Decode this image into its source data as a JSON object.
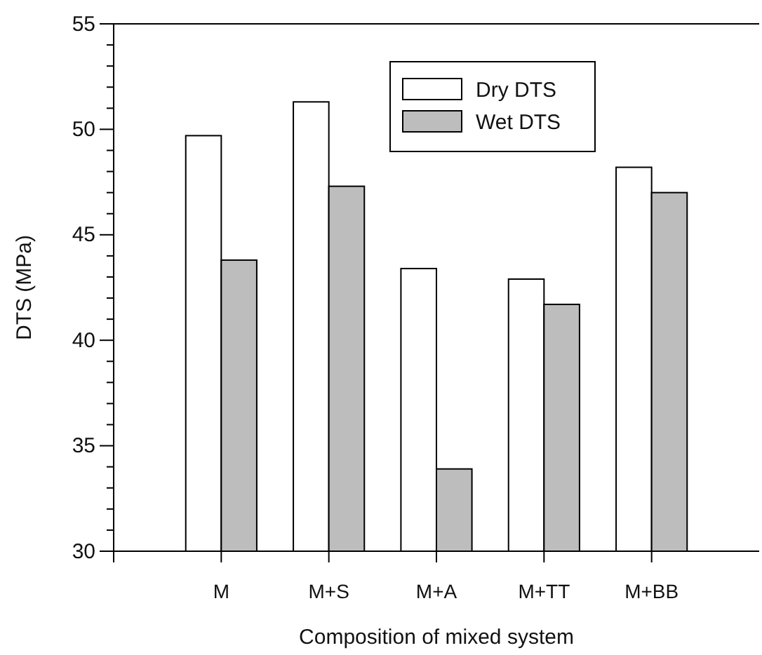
{
  "chart_data": {
    "type": "bar",
    "xlabel": "Composition of mixed system",
    "ylabel": "DTS (MPa)",
    "categories": [
      "M",
      "M+S",
      "M+A",
      "M+TT",
      "M+BB"
    ],
    "series": [
      {
        "name": "Dry DTS",
        "color": "#ffffff",
        "values": [
          49.7,
          51.3,
          43.4,
          42.9,
          48.2
        ]
      },
      {
        "name": "Wet DTS",
        "color": "#bdbdbd",
        "values": [
          43.8,
          47.3,
          33.9,
          41.7,
          47.0
        ]
      }
    ],
    "ylim": [
      30,
      55
    ],
    "yticks": [
      30,
      {
        "value": 31,
        "label": null
      },
      {
        "value": 32,
        "label": null
      },
      {
        "value": 33,
        "label": null
      },
      {
        "value": 34,
        "label": null
      },
      35,
      {
        "value": 36,
        "label": null
      },
      {
        "value": 37,
        "label": null
      },
      {
        "value": 38,
        "label": null
      },
      {
        "value": 39,
        "label": null
      },
      40,
      {
        "value": 41,
        "label": null
      },
      {
        "value": 42,
        "label": null
      },
      {
        "value": 43,
        "label": null
      },
      {
        "value": 44,
        "label": null
      },
      45,
      {
        "value": 46,
        "label": null
      },
      {
        "value": 47,
        "label": null
      },
      {
        "value": 48,
        "label": null
      },
      {
        "value": 49,
        "label": null
      },
      50,
      {
        "value": 51,
        "label": null
      },
      {
        "value": 52,
        "label": null
      },
      {
        "value": 53,
        "label": null
      },
      {
        "value": 54,
        "label": null
      },
      55
    ],
    "grid": false,
    "legend": "top right"
  }
}
